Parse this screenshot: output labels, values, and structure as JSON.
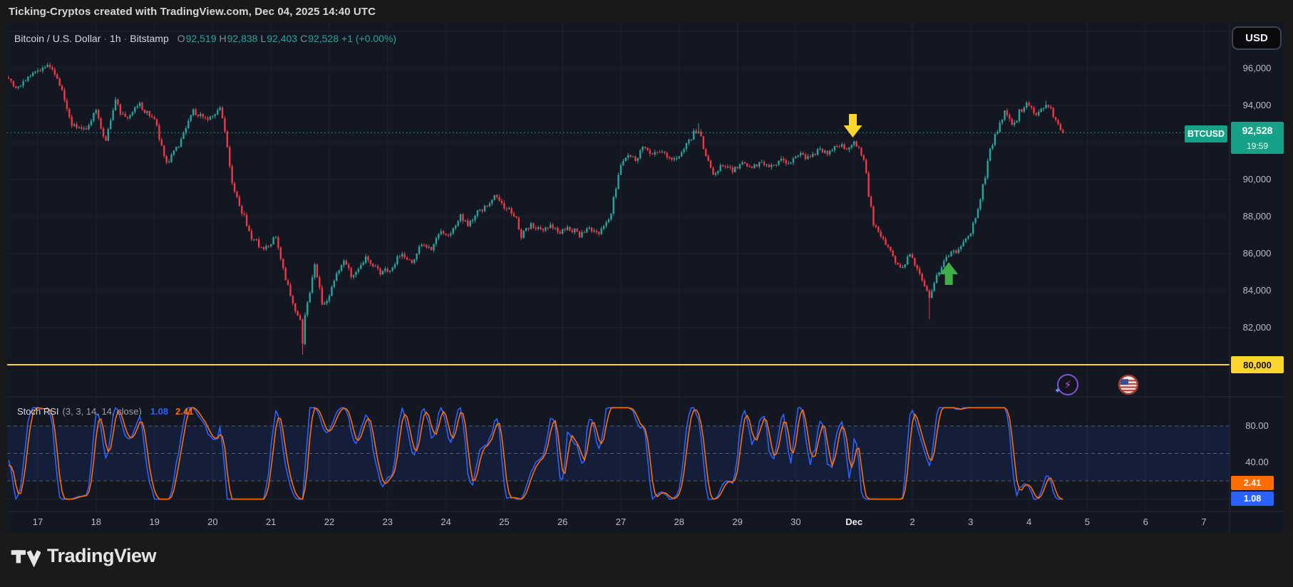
{
  "title_bar": {
    "text": "Ticking-Cryptos created with TradingView.com, Dec 04, 2025 14:40 UTC"
  },
  "symbol_header": {
    "name": "Bitcoin / U.S. Dollar",
    "sep": "·",
    "interval": "1h",
    "exchange": "Bitstamp",
    "o_label": "O",
    "o": "92,519",
    "h_label": "H",
    "h": "92,838",
    "l_label": "L",
    "l": "92,403",
    "c_label": "C",
    "c": "92,528",
    "change": "+1 (+0.00%)"
  },
  "currency_button": {
    "label": "USD"
  },
  "price_scale": {
    "labels": [
      {
        "text": "96,000",
        "price": 96000
      },
      {
        "text": "94,000",
        "price": 94000
      },
      {
        "text": "90,000",
        "price": 90000
      },
      {
        "text": "88,000",
        "price": 88000
      },
      {
        "text": "86,000",
        "price": 86000
      },
      {
        "text": "84,000",
        "price": 84000
      },
      {
        "text": "82,000",
        "price": 82000
      }
    ],
    "last_badge": {
      "symbol": "BTCUSD",
      "price": "92,528",
      "countdown": "19:59"
    },
    "level_badge": {
      "text": "80,000",
      "price": 80000
    }
  },
  "time_scale": {
    "labels": [
      "17",
      "18",
      "19",
      "20",
      "21",
      "22",
      "23",
      "24",
      "25",
      "26",
      "27",
      "28",
      "29",
      "30",
      "Dec",
      "2",
      "3",
      "4",
      "5",
      "6",
      "7"
    ],
    "emphasis": "Dec"
  },
  "indicator_pane": {
    "title": "Stoch RSI",
    "params": "(3, 3, 14, 14, close)",
    "k": "1.08",
    "d": "2.41",
    "axis": [
      {
        "text": "80.00",
        "value": 80
      },
      {
        "text": "40.00",
        "value": 40
      }
    ],
    "badge_d": "2.41",
    "badge_k": "1.08"
  },
  "footer": {
    "brand": "TradingView"
  },
  "chart_data": {
    "type": "candlestick",
    "symbol": "BTCUSD",
    "interval": "1h",
    "title": "Bitcoin / U.S. Dollar 1h Bitstamp",
    "ohlc_last": {
      "open": 92519,
      "high": 92838,
      "low": 92403,
      "close": 92528,
      "change": "+1 (+0.00%)"
    },
    "current_price": 92528,
    "horizontal_level": 80000,
    "price_range_visible": [
      78300,
      98500
    ],
    "grid_price_step": 2000,
    "hours_start_label": "Nov 16 12:00",
    "price_anchor_points": [
      [
        0,
        95500
      ],
      [
        3,
        94800
      ],
      [
        6,
        95200
      ],
      [
        10,
        95700
      ],
      [
        14,
        96000
      ],
      [
        17,
        96200
      ],
      [
        20,
        95400
      ],
      [
        22,
        94700
      ],
      [
        24,
        93800
      ],
      [
        26,
        93000
      ],
      [
        29,
        92800
      ],
      [
        32,
        92650
      ],
      [
        34,
        93300
      ],
      [
        36,
        93900
      ],
      [
        38,
        92800
      ],
      [
        40,
        92100
      ],
      [
        42,
        93200
      ],
      [
        44,
        94300
      ],
      [
        46,
        93600
      ],
      [
        48,
        93300
      ],
      [
        51,
        93700
      ],
      [
        54,
        94000
      ],
      [
        57,
        93600
      ],
      [
        60,
        93300
      ],
      [
        62,
        92300
      ],
      [
        65,
        90800
      ],
      [
        67,
        91200
      ],
      [
        70,
        91900
      ],
      [
        73,
        92800
      ],
      [
        76,
        93700
      ],
      [
        79,
        93400
      ],
      [
        82,
        93200
      ],
      [
        85,
        93600
      ],
      [
        87,
        93800
      ],
      [
        89,
        92600
      ],
      [
        92,
        89800
      ],
      [
        94,
        89000
      ],
      [
        96,
        88300
      ],
      [
        98,
        87600
      ],
      [
        100,
        86900
      ],
      [
        103,
        86500
      ],
      [
        106,
        86300
      ],
      [
        108,
        86600
      ],
      [
        110,
        86900
      ],
      [
        112,
        85800
      ],
      [
        114,
        84600
      ],
      [
        117,
        83300
      ],
      [
        119,
        82700
      ],
      [
        120,
        82300
      ],
      [
        121,
        81200
      ],
      [
        122,
        82600
      ],
      [
        124,
        84000
      ],
      [
        126,
        85300
      ],
      [
        128,
        84200
      ],
      [
        129,
        83300
      ],
      [
        132,
        83700
      ],
      [
        135,
        85000
      ],
      [
        138,
        85600
      ],
      [
        141,
        84800
      ],
      [
        144,
        85300
      ],
      [
        147,
        85800
      ],
      [
        150,
        85400
      ],
      [
        153,
        84900
      ],
      [
        156,
        85100
      ],
      [
        158,
        85300
      ],
      [
        160,
        85800
      ],
      [
        162,
        86100
      ],
      [
        164,
        85700
      ],
      [
        166,
        85500
      ],
      [
        168,
        86000
      ],
      [
        170,
        86500
      ],
      [
        172,
        86400
      ],
      [
        174,
        86300
      ],
      [
        176,
        86900
      ],
      [
        178,
        87300
      ],
      [
        180,
        87100
      ],
      [
        182,
        87000
      ],
      [
        184,
        87600
      ],
      [
        186,
        88100
      ],
      [
        188,
        87700
      ],
      [
        189,
        87500
      ],
      [
        191,
        87900
      ],
      [
        193,
        88300
      ],
      [
        195,
        88400
      ],
      [
        197,
        88600
      ],
      [
        200,
        89200
      ],
      [
        202,
        88900
      ],
      [
        203,
        88600
      ],
      [
        205,
        88400
      ],
      [
        207,
        88300
      ],
      [
        209,
        87800
      ],
      [
        211,
        86900
      ],
      [
        213,
        87300
      ],
      [
        215,
        87600
      ],
      [
        217,
        87400
      ],
      [
        219,
        87200
      ],
      [
        221,
        87400
      ],
      [
        223,
        87600
      ],
      [
        225,
        87300
      ],
      [
        227,
        87100
      ],
      [
        229,
        87300
      ],
      [
        231,
        87400
      ],
      [
        233,
        87200
      ],
      [
        235,
        86900
      ],
      [
        237,
        87200
      ],
      [
        239,
        87400
      ],
      [
        241,
        87200
      ],
      [
        243,
        87100
      ],
      [
        245,
        87400
      ],
      [
        246,
        87600
      ],
      [
        248,
        88300
      ],
      [
        250,
        89600
      ],
      [
        252,
        90700
      ],
      [
        254,
        91100
      ],
      [
        255,
        91300
      ],
      [
        257,
        91100
      ],
      [
        258,
        91000
      ],
      [
        260,
        91500
      ],
      [
        261,
        91800
      ],
      [
        263,
        91500
      ],
      [
        264,
        91300
      ],
      [
        266,
        91400
      ],
      [
        268,
        91600
      ],
      [
        270,
        91300
      ],
      [
        272,
        91100
      ],
      [
        274,
        91200
      ],
      [
        276,
        91300
      ],
      [
        278,
        91600
      ],
      [
        279,
        91900
      ],
      [
        281,
        92200
      ],
      [
        282,
        92500
      ],
      [
        284,
        92600
      ],
      [
        286,
        91800
      ],
      [
        288,
        90900
      ],
      [
        290,
        90300
      ],
      [
        292,
        90600
      ],
      [
        294,
        90800
      ],
      [
        296,
        90600
      ],
      [
        298,
        90500
      ],
      [
        300,
        90700
      ],
      [
        302,
        90900
      ],
      [
        304,
        90700
      ],
      [
        306,
        90600
      ],
      [
        308,
        90800
      ],
      [
        310,
        91000
      ],
      [
        312,
        90800
      ],
      [
        314,
        90700
      ],
      [
        316,
        90900
      ],
      [
        318,
        91100
      ],
      [
        320,
        91000
      ],
      [
        322,
        90900
      ],
      [
        324,
        91100
      ],
      [
        326,
        91300
      ],
      [
        328,
        91200
      ],
      [
        330,
        91100
      ],
      [
        332,
        91400
      ],
      [
        334,
        91600
      ],
      [
        336,
        91500
      ],
      [
        338,
        91400
      ],
      [
        340,
        91700
      ],
      [
        342,
        91900
      ],
      [
        344,
        91800
      ],
      [
        345,
        91700
      ],
      [
        347,
        91900
      ],
      [
        348,
        92000
      ],
      [
        350,
        91700
      ],
      [
        352,
        91200
      ],
      [
        354,
        89200
      ],
      [
        356,
        87600
      ],
      [
        358,
        87100
      ],
      [
        359,
        86900
      ],
      [
        361,
        86500
      ],
      [
        362,
        86300
      ],
      [
        364,
        85900
      ],
      [
        365,
        85600
      ],
      [
        367,
        85300
      ],
      [
        368,
        85200
      ],
      [
        370,
        85800
      ],
      [
        371,
        86000
      ],
      [
        373,
        85400
      ],
      [
        374,
        85100
      ],
      [
        376,
        84600
      ],
      [
        377,
        84200
      ],
      [
        379,
        83700
      ],
      [
        381,
        84300
      ],
      [
        382,
        84900
      ],
      [
        384,
        85300
      ],
      [
        385,
        85600
      ],
      [
        387,
        86000
      ],
      [
        388,
        86200
      ],
      [
        390,
        86000
      ],
      [
        392,
        86500
      ],
      [
        393,
        86700
      ],
      [
        395,
        87000
      ],
      [
        396,
        87200
      ],
      [
        398,
        88000
      ],
      [
        399,
        88500
      ],
      [
        401,
        89600
      ],
      [
        402,
        90200
      ],
      [
        404,
        91600
      ],
      [
        406,
        92400
      ],
      [
        408,
        93000
      ],
      [
        409,
        93300
      ],
      [
        410,
        93700
      ],
      [
        412,
        93400
      ],
      [
        413,
        92900
      ],
      [
        415,
        93300
      ],
      [
        416,
        93700
      ],
      [
        418,
        93900
      ],
      [
        419,
        94000
      ],
      [
        421,
        93800
      ],
      [
        423,
        93500
      ],
      [
        425,
        93700
      ],
      [
        427,
        94000
      ],
      [
        429,
        93800
      ],
      [
        430,
        93500
      ],
      [
        431,
        93300
      ],
      [
        432,
        93100
      ],
      [
        433,
        92800
      ],
      [
        434,
        92528
      ]
    ],
    "wick_extremes": [
      {
        "hour": 17,
        "high": 96320
      },
      {
        "hour": 121,
        "low": 80540
      },
      {
        "hour": 284,
        "high": 93040
      },
      {
        "hour": 379,
        "low": 82450
      },
      {
        "hour": 427,
        "high": 94250
      }
    ],
    "markers": [
      {
        "shape": "arrow-down",
        "color": "#fbd42c",
        "hour": 347.5,
        "tip_price": 92270
      },
      {
        "shape": "arrow-up",
        "color": "#3fae49",
        "hour": 387,
        "tip_price": 85538
      }
    ],
    "indicator": {
      "name": "Stoch RSI",
      "inputs": [
        3,
        3,
        14,
        14,
        "close"
      ],
      "k_last": 1.08,
      "d_last": 2.41,
      "bands": [
        80,
        50,
        20
      ],
      "band_fill_between": [
        20,
        80
      ]
    },
    "colors": {
      "up": "#26a69a",
      "down": "#f23645",
      "k_line": "#2962ff",
      "d_line": "#ff6d00",
      "current_price_line": "#26a69a",
      "level_line": "#f7d340",
      "grid": "#1e222d",
      "band_dash": "#565b68",
      "band_fill": "rgba(41,98,255,0.10)",
      "badge_green": "#17a287",
      "badge_yellow": "#fbd42c",
      "badge_blue": "#2962ff",
      "badge_orange": "#ff6d00"
    }
  }
}
